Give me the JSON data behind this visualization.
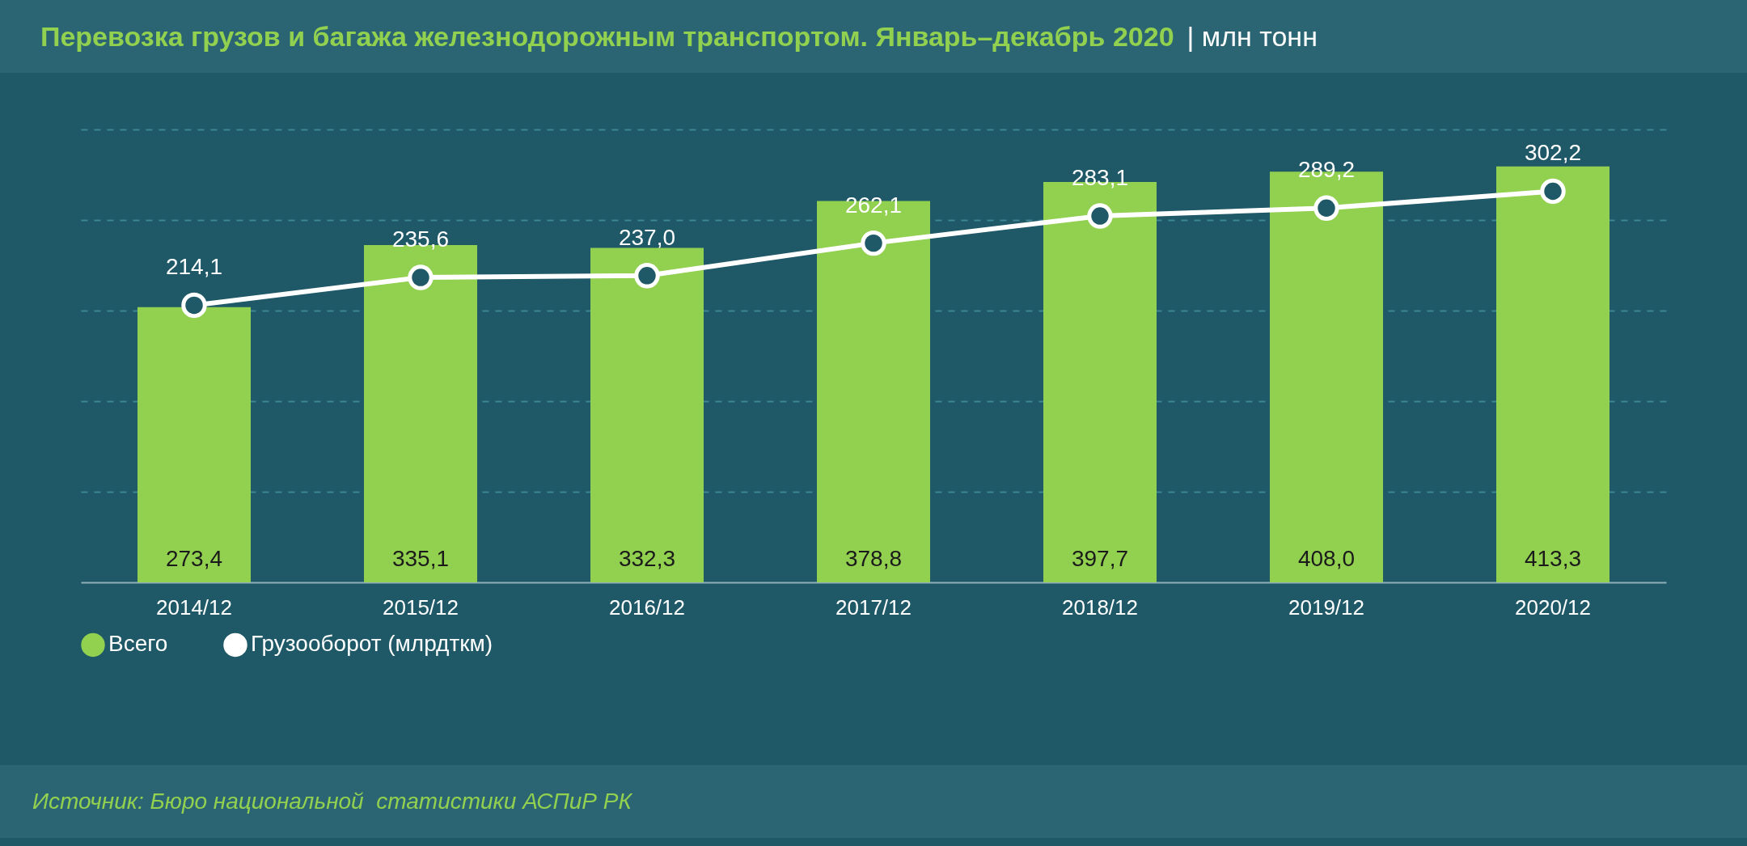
{
  "chart_data": {
    "type": "bar",
    "title": "Перевозка грузов и багажа железнодорожным транспортом. Январь–декабрь 2020",
    "subtitle": "| млн тонн",
    "categories": [
      "2014/12",
      "2015/12",
      "2016/12",
      "2017/12",
      "2018/12",
      "2019/12",
      "2020/12"
    ],
    "series": [
      {
        "name": "Всего",
        "axis": "y2",
        "color": "#92d050",
        "values": [
          273.4,
          335.1,
          332.3,
          378.8,
          397.7,
          408.0,
          413.3
        ],
        "value_labels": [
          "273,4",
          "335,1",
          "332,3",
          "378,8",
          "397,7",
          "408,0",
          "413,3"
        ]
      },
      {
        "name": "Грузооборот (млрдткм)",
        "type": "line",
        "color": "#ffffff",
        "values": [
          214.1,
          235.6,
          237.0,
          262.1,
          283.1,
          289.2,
          302.2
        ],
        "value_labels": [
          "214,1",
          "235,6",
          "237,0",
          "262,1",
          "283,1",
          "289,2",
          "302,2"
        ]
      }
    ],
    "ylim": [
      0,
      350
    ],
    "yticks": [
      {
        "value": 70,
        "label": null
      },
      {
        "value": 140,
        "label": null
      },
      {
        "value": 210,
        "label": null
      },
      {
        "value": 280,
        "label": null
      },
      {
        "value": 350,
        "label": null
      }
    ],
    "y2lim": [
      0,
      450
    ],
    "grid": "y",
    "legend": "bottom",
    "marker": "circle",
    "line_style": "solid",
    "tick_labels": "x",
    "annotations": [
      "Источник: Бюро национальной  статистики АСПиР РК"
    ]
  }
}
